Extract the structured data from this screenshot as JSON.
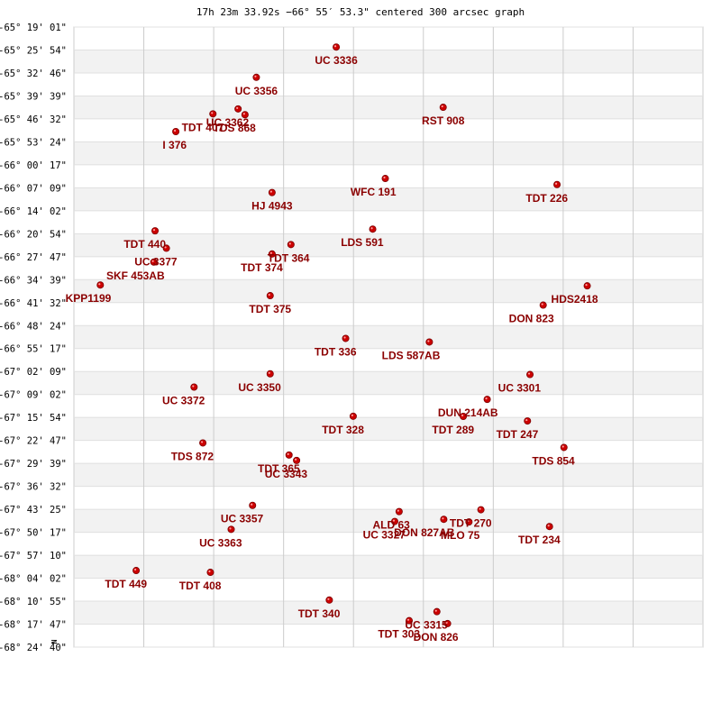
{
  "chart_data": {
    "type": "scatter",
    "title": "17h 23m 33.92s −66° 55′ 53.3\" centered 300 arcsec graph",
    "north_label": "N",
    "colors": {
      "marker": "#cc0000",
      "label": "#8b0000",
      "band": "#f2f2f2",
      "grid": "#cccccc"
    },
    "y_ticks": [
      "-65° 19' 01\"",
      "-65° 25' 54\"",
      "-65° 32' 46\"",
      "-65° 39' 39\"",
      "-65° 46' 32\"",
      "-65° 53' 24\"",
      "-66° 00' 17\"",
      "-66° 07' 09\"",
      "-66° 14' 02\"",
      "-66° 20' 54\"",
      "-66° 27' 47\"",
      "-66° 34' 39\"",
      "-66° 41' 32\"",
      "-66° 48' 24\"",
      "-66° 55' 17\"",
      "-67° 02' 09\"",
      "-67° 09' 02\"",
      "-67° 15' 54\"",
      "-67° 22' 47\"",
      "-67° 29' 39\"",
      "-67° 36' 32\"",
      "-67° 43' 25\"",
      "-67° 50' 17\"",
      "-67° 57' 10\"",
      "-68° 04' 02\"",
      "-68° 10' 55\"",
      "-68° 17' 47\"",
      "-68° 24' 40\""
    ],
    "y_range_deg": [
      -65.317,
      -68.411
    ],
    "x_range_u": [
      0,
      100
    ],
    "points": [
      {
        "name": "UC 3336",
        "x": 41.7,
        "y": -65.4169,
        "anchor": "middle"
      },
      {
        "name": "UC 3356",
        "x": 29.0,
        "y": -65.5679,
        "anchor": "middle"
      },
      {
        "name": "RST 908",
        "x": 58.7,
        "y": -65.7175,
        "anchor": "middle"
      },
      {
        "name": "UC 3362",
        "x": 26.1,
        "y": -65.7256,
        "anchor": "end"
      },
      {
        "name": "TDT 407",
        "x": 22.1,
        "y": -65.7503,
        "anchor": "end"
      },
      {
        "name": "TDS 868",
        "x": 27.2,
        "y": -65.7543,
        "anchor": "end"
      },
      {
        "name": "I  376",
        "x": 16.2,
        "y": -65.8386,
        "anchor": "end"
      },
      {
        "name": "WFC 191",
        "x": 49.5,
        "y": -66.0726,
        "anchor": "end"
      },
      {
        "name": "TDT 226",
        "x": 76.8,
        "y": -66.1029,
        "anchor": "end"
      },
      {
        "name": "HJ 4943",
        "x": 31.5,
        "y": -66.1428,
        "anchor": "middle"
      },
      {
        "name": "LDS 591",
        "x": 47.5,
        "y": -66.3254,
        "anchor": "end"
      },
      {
        "name": "TDT 440",
        "x": 12.9,
        "y": -66.3339,
        "anchor": "end"
      },
      {
        "name": "TDT 364",
        "x": 34.5,
        "y": -66.4024,
        "anchor": "start"
      },
      {
        "name": "TDT 374",
        "x": 31.5,
        "y": -66.4494,
        "anchor": "end"
      },
      {
        "name": "UC 3377",
        "x": 14.7,
        "y": -66.4207,
        "anchor": "end"
      },
      {
        "name": "SKF 453AB",
        "x": 12.7,
        "y": -66.4898,
        "anchor": "end"
      },
      {
        "name": "KPP1199",
        "x": 4.2,
        "y": -66.6042,
        "anchor": "end"
      },
      {
        "name": "HDS2418",
        "x": 81.6,
        "y": -66.6083,
        "anchor": "end"
      },
      {
        "name": "TDT 375",
        "x": 31.2,
        "y": -66.6574,
        "anchor": "middle"
      },
      {
        "name": "DON 823",
        "x": 74.6,
        "y": -66.7046,
        "anchor": "end"
      },
      {
        "name": "TDT 336",
        "x": 43.2,
        "y": -66.8706,
        "anchor": "end"
      },
      {
        "name": "LDS 587AB",
        "x": 56.5,
        "y": -66.8886,
        "anchor": "end"
      },
      {
        "name": "UC 3350",
        "x": 31.2,
        "y": -67.0473,
        "anchor": "end"
      },
      {
        "name": "UC 3301",
        "x": 72.5,
        "y": -67.0509,
        "anchor": "end"
      },
      {
        "name": "UC 3372",
        "x": 19.1,
        "y": -67.1136,
        "anchor": "end"
      },
      {
        "name": "DUN 214AB",
        "x": 65.7,
        "y": -67.1748,
        "anchor": "end"
      },
      {
        "name": "TDT 328",
        "x": 44.4,
        "y": -67.2591,
        "anchor": "end"
      },
      {
        "name": "TDT 289",
        "x": 61.9,
        "y": -67.2598,
        "anchor": "end"
      },
      {
        "name": "TDT 247",
        "x": 72.1,
        "y": -67.2826,
        "anchor": "end"
      },
      {
        "name": "TDS 872",
        "x": 20.5,
        "y": -67.3922,
        "anchor": "end"
      },
      {
        "name": "TDS 854",
        "x": 77.9,
        "y": -67.4148,
        "anchor": "end"
      },
      {
        "name": "TDT 365",
        "x": 34.2,
        "y": -67.4526,
        "anchor": "end"
      },
      {
        "name": "UC 3343",
        "x": 35.4,
        "y": -67.4796,
        "anchor": "end"
      },
      {
        "name": "UC 3357",
        "x": 28.4,
        "y": -67.7038,
        "anchor": "end"
      },
      {
        "name": "TDT 270",
        "x": 64.7,
        "y": -67.7255,
        "anchor": "end"
      },
      {
        "name": "ALD  63",
        "x": 51.7,
        "y": -67.7347,
        "anchor": "end"
      },
      {
        "name": "DON 827AB",
        "x": 58.8,
        "y": -67.7734,
        "anchor": "end"
      },
      {
        "name": "MLO  75",
        "x": 62.8,
        "y": -67.7864,
        "anchor": "end"
      },
      {
        "name": "UC 3327",
        "x": 51.0,
        "y": -67.7841,
        "anchor": "end"
      },
      {
        "name": "TDT 234",
        "x": 75.6,
        "y": -67.8094,
        "anchor": "end"
      },
      {
        "name": "UC 3363",
        "x": 25.0,
        "y": -67.8234,
        "anchor": "end"
      },
      {
        "name": "TDT 449",
        "x": 9.9,
        "y": -68.0289,
        "anchor": "end"
      },
      {
        "name": "TDT 408",
        "x": 21.7,
        "y": -68.0379,
        "anchor": "end"
      },
      {
        "name": "TDT 340",
        "x": 40.6,
        "y": -68.1763,
        "anchor": "end"
      },
      {
        "name": "UC 3315",
        "x": 57.7,
        "y": -68.2341,
        "anchor": "end"
      },
      {
        "name": "TDT 303",
        "x": 53.3,
        "y": -68.2791,
        "anchor": "end"
      },
      {
        "name": "DON 826",
        "x": 59.4,
        "y": -68.2937,
        "anchor": "end"
      }
    ]
  }
}
